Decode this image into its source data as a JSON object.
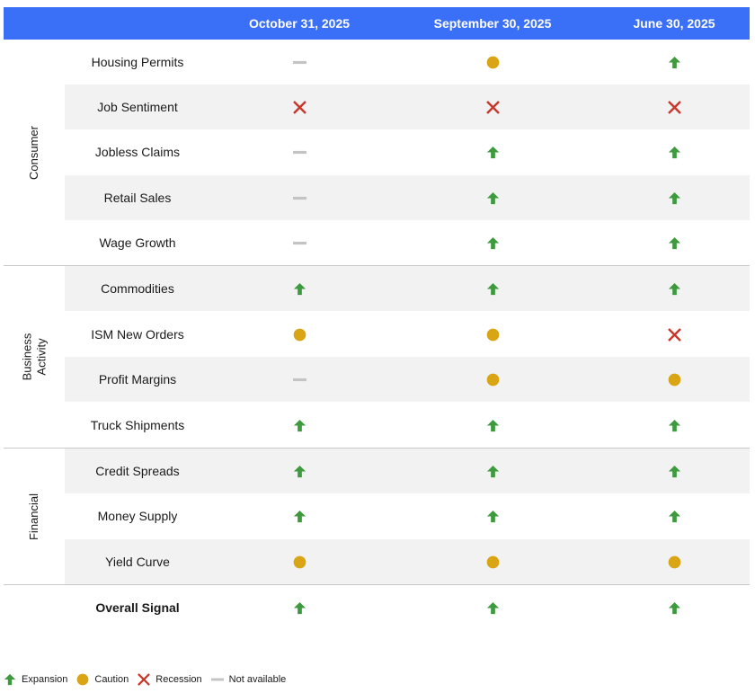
{
  "header": {
    "col1": "October 31, 2025",
    "col2": "September 30, 2025",
    "col3": "June 30, 2025"
  },
  "groups": {
    "consumer": "Consumer",
    "business_line1": "Business",
    "business_line2": "Activity",
    "financial": "Financial"
  },
  "colors": {
    "expansion": "#3d9a3d",
    "caution": "#d9a514",
    "recession": "#c8372b",
    "not_available": "#c4c4c4",
    "header_bg": "#3a6ff7"
  },
  "chart_data": {
    "type": "table",
    "columns": [
      "October 31, 2025",
      "September 30, 2025",
      "June 30, 2025"
    ],
    "rows": [
      {
        "group": "Consumer",
        "label": "Housing Permits",
        "values": [
          "not_available",
          "caution",
          "expansion"
        ]
      },
      {
        "group": "Consumer",
        "label": "Job Sentiment",
        "values": [
          "recession",
          "recession",
          "recession"
        ]
      },
      {
        "group": "Consumer",
        "label": "Jobless Claims",
        "values": [
          "not_available",
          "expansion",
          "expansion"
        ]
      },
      {
        "group": "Consumer",
        "label": "Retail Sales",
        "values": [
          "not_available",
          "expansion",
          "expansion"
        ]
      },
      {
        "group": "Consumer",
        "label": "Wage Growth",
        "values": [
          "not_available",
          "expansion",
          "expansion"
        ]
      },
      {
        "group": "Business Activity",
        "label": "Commodities",
        "values": [
          "expansion",
          "expansion",
          "expansion"
        ]
      },
      {
        "group": "Business Activity",
        "label": "ISM New Orders",
        "values": [
          "caution",
          "caution",
          "recession"
        ]
      },
      {
        "group": "Business Activity",
        "label": "Profit Margins",
        "values": [
          "not_available",
          "caution",
          "caution"
        ]
      },
      {
        "group": "Business Activity",
        "label": "Truck Shipments",
        "values": [
          "expansion",
          "expansion",
          "expansion"
        ]
      },
      {
        "group": "Financial",
        "label": "Credit Spreads",
        "values": [
          "expansion",
          "expansion",
          "expansion"
        ]
      },
      {
        "group": "Financial",
        "label": "Money Supply",
        "values": [
          "expansion",
          "expansion",
          "expansion"
        ]
      },
      {
        "group": "Financial",
        "label": "Yield Curve",
        "values": [
          "caution",
          "caution",
          "caution"
        ]
      },
      {
        "group": "",
        "label": "Overall Signal",
        "values": [
          "expansion",
          "expansion",
          "expansion"
        ]
      }
    ]
  },
  "legend": {
    "expansion": "Expansion",
    "caution": "Caution",
    "recession": "Recession",
    "not_available": "Not available"
  }
}
